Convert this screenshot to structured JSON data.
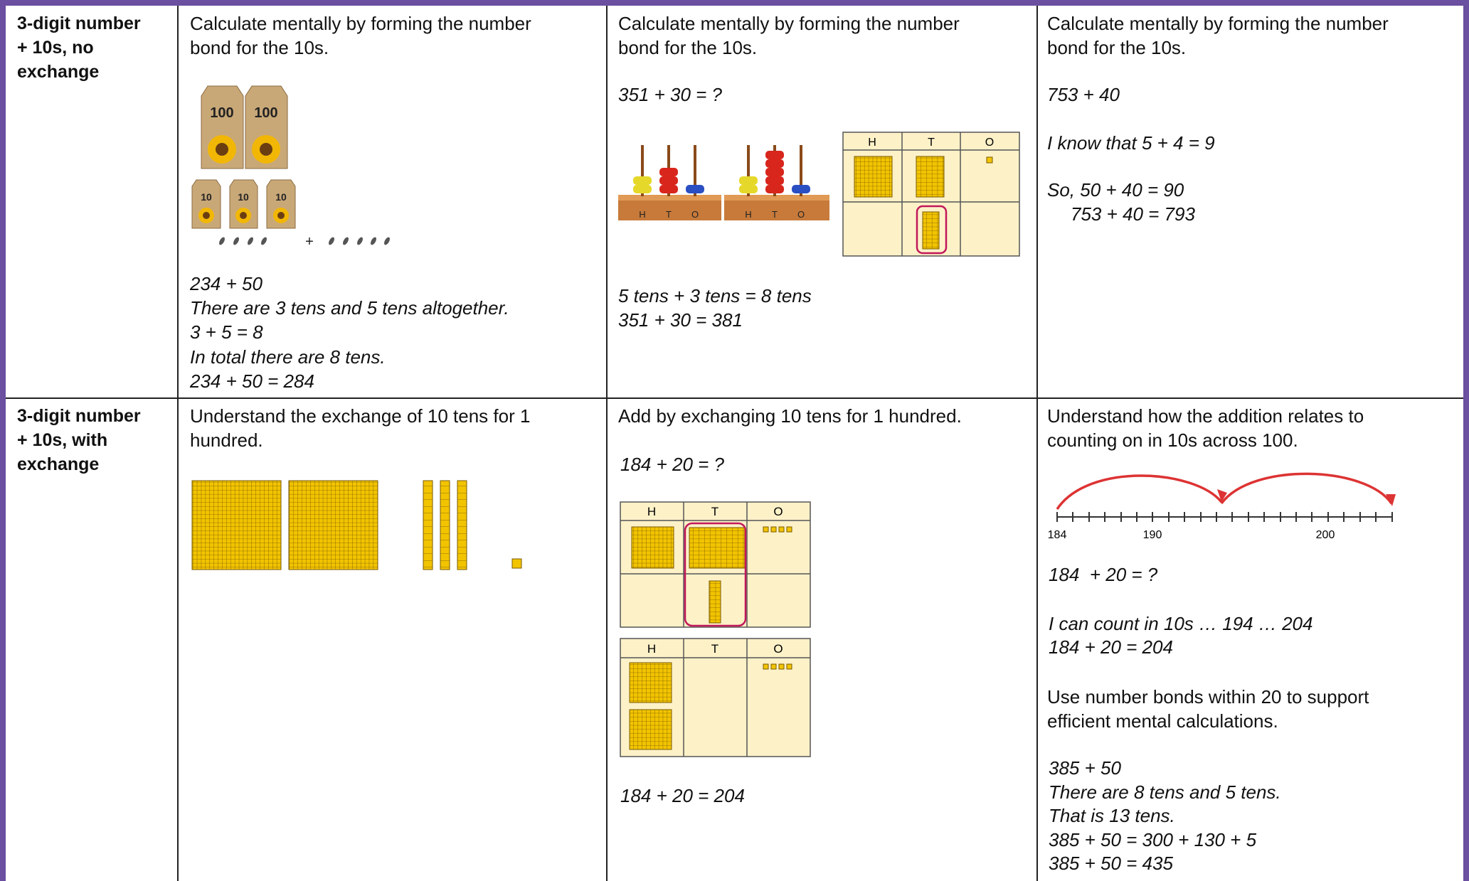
{
  "table": {
    "rows": [
      {
        "heading": [
          "3-digit number",
          "+ 10s, no",
          "exchange"
        ],
        "cells": [
          {
            "lines": [
              "Calculate mentally by forming the number",
              "bond for the 10s.",
              "234 + 50",
              "There are 3 tens and 5 tens altogether.",
              "3 + 5 = 8",
              "In total there are 8 tens.",
              "234 + 50 = 284"
            ],
            "figure": {
              "labels": [
                "100",
                "100",
                "10",
                "10",
                "10",
                "+"
              ]
            }
          },
          {
            "lines": [
              "Calculate mentally by forming the number",
              "bond for the 10s.",
              "351 + 30 = ?",
              "5 tens + 3 tens = 8 tens",
              "351 + 30 = 381"
            ],
            "figure": {
              "abacus_labels": [
                "H",
                "T",
                "O",
                "H",
                "T",
                "O"
              ],
              "chart_headers": [
                "H",
                "T",
                "O"
              ]
            }
          },
          {
            "lines": [
              "Calculate mentally by forming the number",
              "bond for the 10s.",
              "753 + 40",
              "I know that 5 + 4 = 9",
              "So, 50 + 40 = 90",
              "753 + 40 = 793"
            ]
          }
        ]
      },
      {
        "heading": [
          "3-digit number",
          "+ 10s, with",
          "exchange"
        ],
        "cells": [
          {
            "lines": [
              "Understand the exchange of 10 tens for 1",
              "hundred."
            ]
          },
          {
            "lines": [
              "Add by exchanging 10 tens for 1 hundred.",
              "184 + 20 = ?",
              "184 + 20 = 204"
            ],
            "figure": {
              "charts": [
                [
                  "H",
                  "T",
                  "O"
                ],
                [
                  "H",
                  "T",
                  "O"
                ]
              ]
            }
          },
          {
            "lines": [
              "Understand how the addition relates to",
              "counting on in 10s across 100.",
              "184  + 20 = ?",
              "I can count in 10s … 194 … 204",
              "184 + 20 = 204",
              "Use number bonds within 20 to support",
              "efficient mental calculations.",
              "385 + 50",
              "There are 8 tens and 5 tens.",
              "That is 13 tens.",
              "385 + 50 = 300 + 130 + 5",
              "385 + 50 = 435"
            ],
            "figure": {
              "number_line_labels": [
                "184",
                "190",
                "200"
              ]
            }
          }
        ]
      }
    ]
  }
}
